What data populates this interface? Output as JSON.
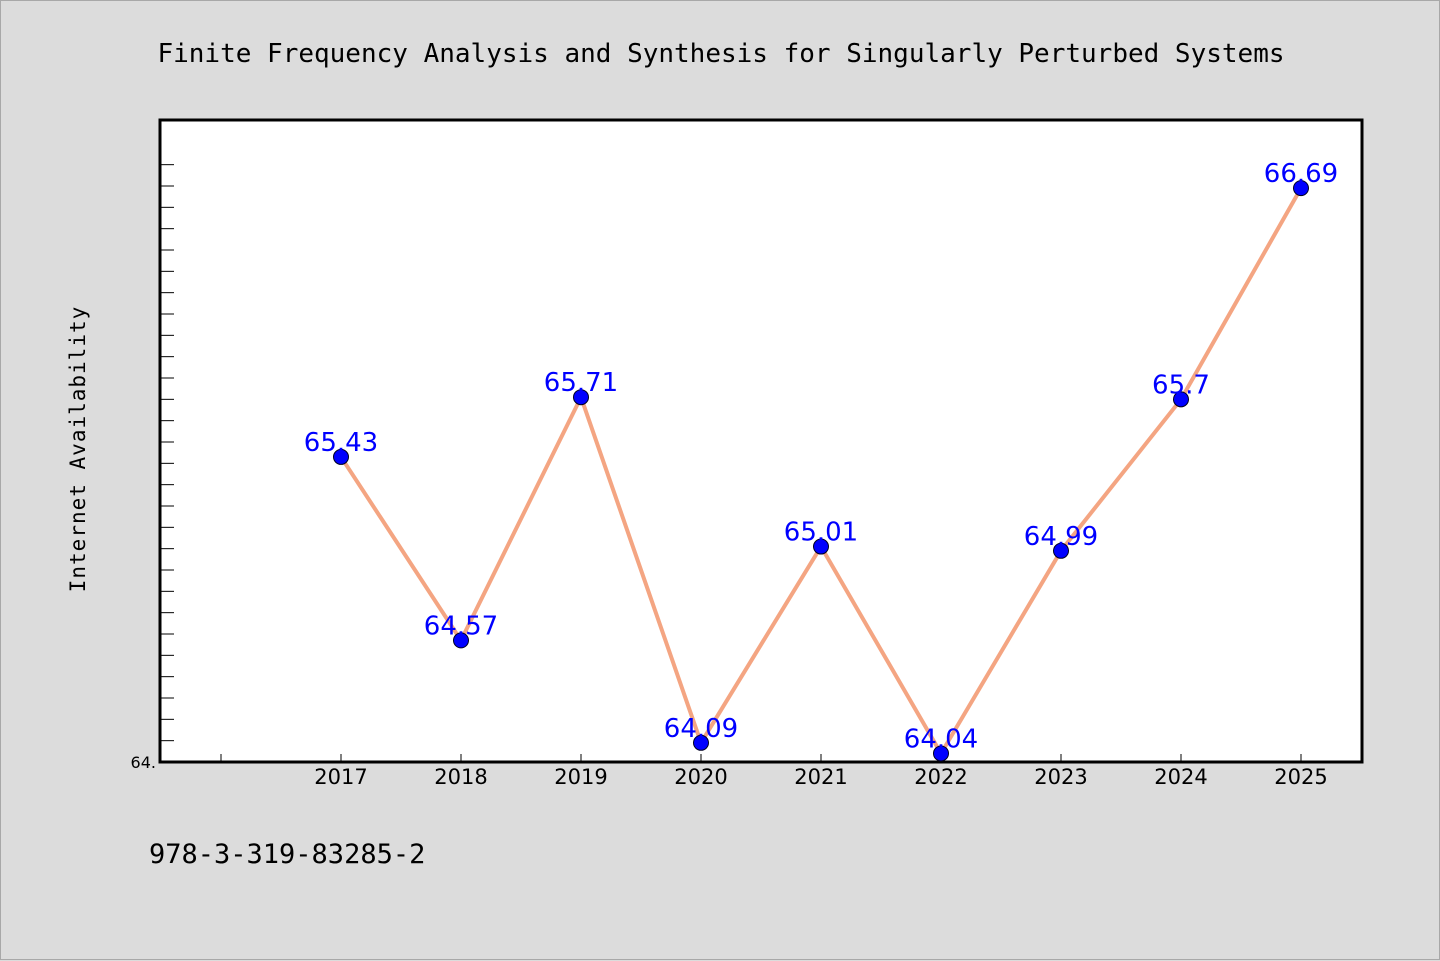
{
  "chart_data": {
    "type": "line",
    "title": "Finite Frequency Analysis and Synthesis for Singularly Perturbed Systems",
    "xlabel": "",
    "ylabel": "Internet Availability",
    "categories": [
      "2017",
      "2018",
      "2019",
      "2020",
      "2021",
      "2022",
      "2023",
      "2024",
      "2025"
    ],
    "series": [
      {
        "values": [
          65.43,
          64.57,
          65.71,
          64.09,
          65.01,
          64.04,
          64.99,
          65.7,
          66.69
        ],
        "labels": [
          "65.43",
          "64.57",
          "65.71",
          "64.09",
          "65.01",
          "64.04",
          "64.99",
          "65.7",
          "66.69"
        ]
      }
    ],
    "ylim": [
      64.0,
      67.0
    ],
    "yticks": [
      {
        "value": 64.0,
        "label": "64."
      }
    ],
    "grid": false,
    "legend": "none",
    "colors": {
      "line": "#f4a582",
      "marker": "#0000ff",
      "label": "#0000ff",
      "plot_bg": "#ffffff",
      "figure_bg": "#dcdcdc"
    }
  },
  "footer": {
    "isbn": "978-3-319-83285-2"
  }
}
